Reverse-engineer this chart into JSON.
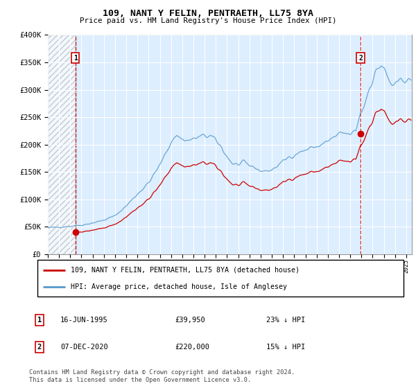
{
  "title": "109, NANT Y FELIN, PENTRAETH, LL75 8YA",
  "subtitle": "Price paid vs. HM Land Registry's House Price Index (HPI)",
  "ylim": [
    0,
    400000
  ],
  "yticks": [
    0,
    50000,
    100000,
    150000,
    200000,
    250000,
    300000,
    350000,
    400000
  ],
  "ytick_labels": [
    "£0",
    "£50K",
    "£100K",
    "£150K",
    "£200K",
    "£250K",
    "£300K",
    "£350K",
    "£400K"
  ],
  "xlim_start": 1993.0,
  "xlim_end": 2025.5,
  "sale1_x": 1995.46,
  "sale1_y": 39950,
  "sale1_label": "1",
  "sale1_date": "16-JUN-1995",
  "sale1_price": "£39,950",
  "sale1_hpi": "23% ↓ HPI",
  "sale2_x": 2020.92,
  "sale2_y": 220000,
  "sale2_label": "2",
  "sale2_date": "07-DEC-2020",
  "sale2_price": "£220,000",
  "sale2_hpi": "15% ↓ HPI",
  "line_color_price": "#cc0000",
  "line_color_hpi": "#5599cc",
  "marker_color": "#cc0000",
  "bg_color": "#ddeeff",
  "grid_color": "#ffffff",
  "legend_line1": "109, NANT Y FELIN, PENTRAETH, LL75 8YA (detached house)",
  "legend_line2": "HPI: Average price, detached house, Isle of Anglesey",
  "footer": "Contains HM Land Registry data © Crown copyright and database right 2024.\nThis data is licensed under the Open Government Licence v3.0."
}
